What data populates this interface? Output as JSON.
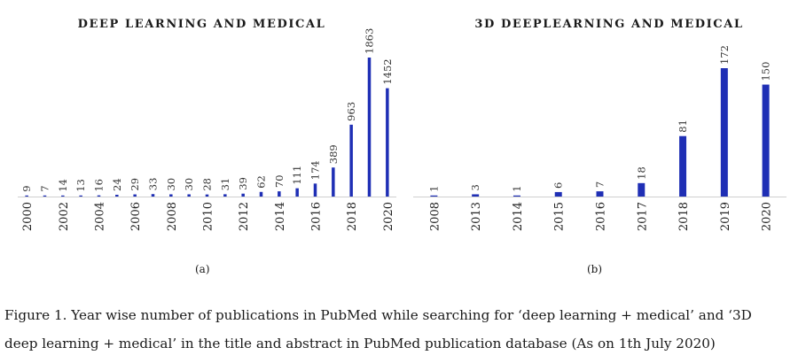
{
  "chart_data": [
    {
      "type": "bar",
      "title": "DEEP LEARNING AND MEDICAL",
      "x": [
        2000,
        2001,
        2002,
        2003,
        2004,
        2005,
        2006,
        2007,
        2008,
        2009,
        2010,
        2011,
        2012,
        2013,
        2014,
        2015,
        2016,
        2017,
        2018,
        2019,
        2020
      ],
      "tick_labels": [
        "2000",
        "2002",
        "2004",
        "2006",
        "2008",
        "2010",
        "2012",
        "2014",
        "2016",
        "2018",
        "2020"
      ],
      "values": [
        9,
        7,
        14,
        13,
        16,
        24,
        29,
        33,
        30,
        30,
        28,
        31,
        39,
        62,
        70,
        111,
        174,
        389,
        963,
        1863,
        1452
      ],
      "bar_color": "#1f2fb5",
      "ylim": [
        0,
        1863
      ],
      "panel_label": "(a)"
    },
    {
      "type": "bar",
      "title": "3D DEEPLEARNING AND MEDICAL",
      "categories": [
        "2008",
        "2013",
        "2014",
        "2015",
        "2016",
        "2017",
        "2018",
        "2019",
        "2020"
      ],
      "values": [
        1,
        3,
        1,
        6,
        7,
        18,
        81,
        172,
        150
      ],
      "bar_color": "#1f2fb5",
      "ylim": [
        0,
        172
      ],
      "panel_label": "(b)"
    }
  ],
  "caption": {
    "line1": "Figure 1. Year wise number of publications in PubMed while searching for ‘deep learning + medical’ and ‘3D",
    "line2": "deep learning + medical’ in the title and abstract in PubMed publication database (As on 1th July 2020)"
  }
}
